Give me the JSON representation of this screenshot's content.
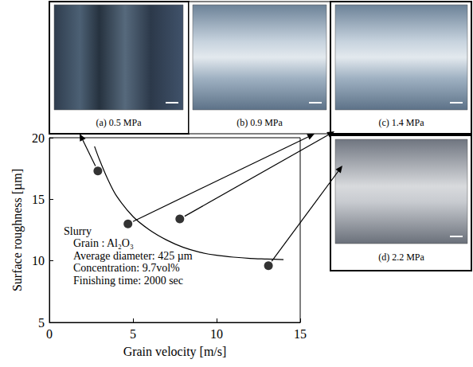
{
  "chart_data": {
    "type": "scatter",
    "x_label": "Grain velocity [m/s]",
    "y_label": "Surface roughness [µm]",
    "xlim": [
      0,
      15
    ],
    "xticks": [
      0,
      5,
      10,
      15
    ],
    "ylim": [
      5,
      20
    ],
    "yticks": [
      5,
      10,
      15,
      20
    ],
    "grid": false,
    "series": [
      {
        "type": "scatter",
        "marker": "circle",
        "color": "#000000",
        "x": [
          2.9,
          4.7,
          7.8,
          13.1
        ],
        "values": [
          17.3,
          13.0,
          13.4,
          9.6
        ]
      },
      {
        "type": "line",
        "line_style": "solid",
        "color": "#000000",
        "x": [
          2.7,
          3.0,
          3.5,
          4.0,
          5.0,
          6.0,
          7.0,
          8.0,
          9.0,
          10.0,
          11.0,
          12.0,
          13.0,
          14.0
        ],
        "values": [
          19.3,
          18.2,
          16.6,
          15.3,
          13.6,
          12.5,
          11.7,
          11.1,
          10.7,
          10.45,
          10.3,
          10.2,
          10.15,
          10.1
        ]
      }
    ],
    "annotations": [
      "Slurry",
      "Grain : Al₂O₃",
      "Average diameter: 425 µm",
      "Concentration: 9.7vol%",
      "Finishing time: 2000 sec"
    ],
    "photos": [
      "(a) 0.5 MPa",
      "(b) 0.9 MPa",
      "(c) 1.4 MPa",
      "(d) 2.2 MPa"
    ]
  }
}
